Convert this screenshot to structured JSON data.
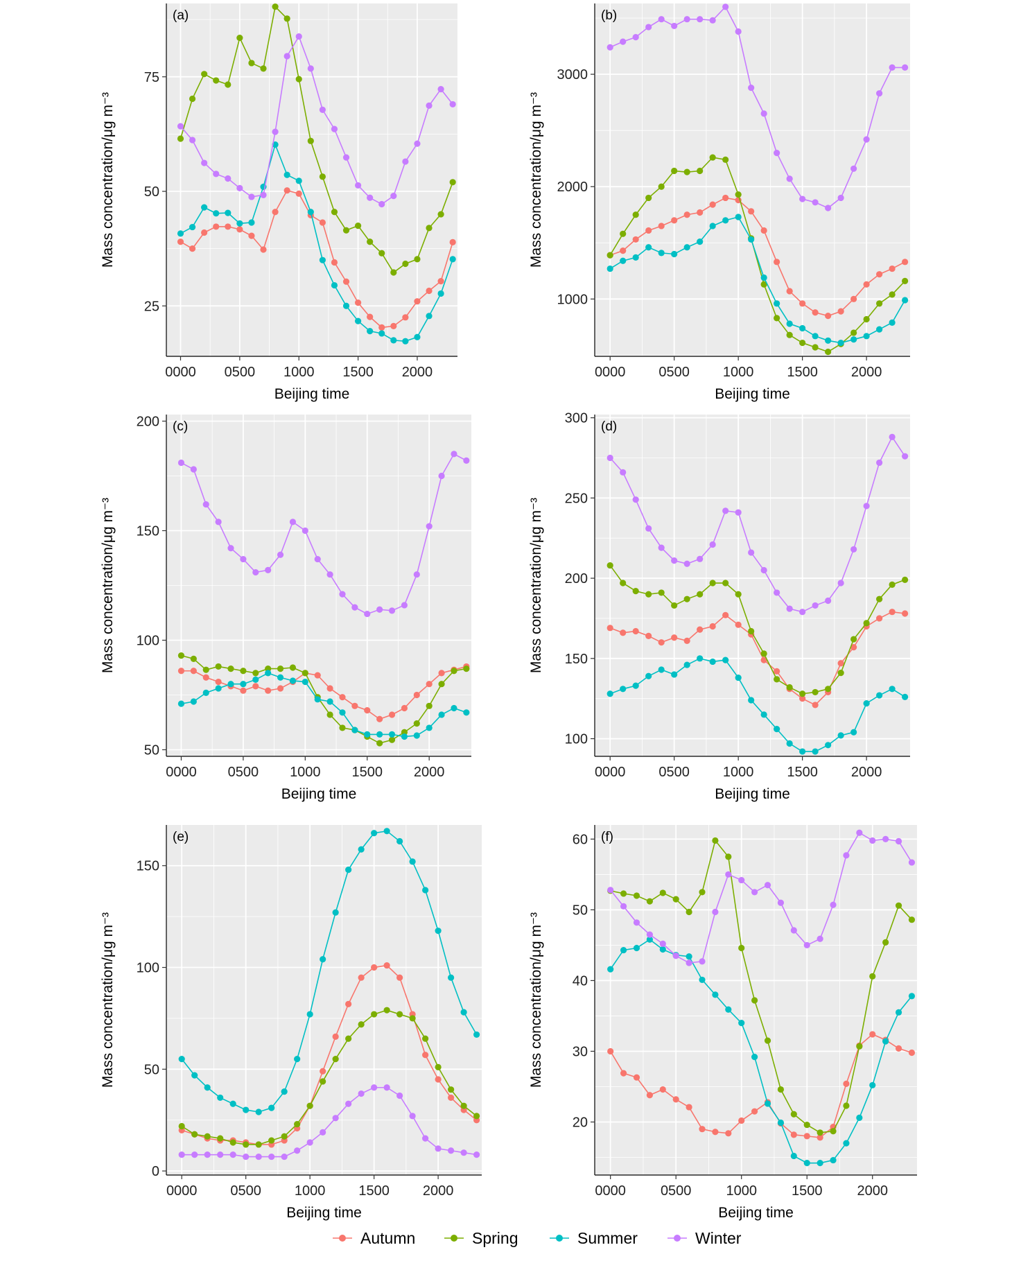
{
  "colors": {
    "Autumn": "#F8766D",
    "Spring": "#7CAE00",
    "Summer": "#00BFC4",
    "Winter": "#C77CFF",
    "panel_bg": "#EBEBEB",
    "grid": "#FFFFFF"
  },
  "legend": [
    "Autumn",
    "Spring",
    "Summer",
    "Winter"
  ],
  "chart_data": [
    {
      "panel": "(a)",
      "type": "line",
      "xlabel": "Beijing time",
      "ylabel": "Mass concentration/μg m⁻³",
      "xticks": [
        "0000",
        "0500",
        "1000",
        "1500",
        "2000"
      ],
      "xlim": [
        -120,
        2340
      ],
      "ylim": [
        14,
        91
      ],
      "yticks": [
        25,
        50,
        75
      ],
      "x": [
        0,
        100,
        200,
        300,
        400,
        500,
        600,
        700,
        800,
        900,
        1000,
        1100,
        1200,
        1300,
        1400,
        1500,
        1600,
        1700,
        1800,
        1900,
        2000,
        2100,
        2200,
        2300
      ],
      "series": [
        {
          "name": "Autumn",
          "values": [
            39,
            37.5,
            41,
            42.3,
            42.3,
            41.7,
            40.3,
            37.3,
            45.5,
            50.2,
            49.5,
            44.8,
            43.2,
            34.5,
            30.3,
            25.7,
            22.6,
            20.3,
            20.6,
            22.5,
            26,
            28.3,
            30.4,
            38.9
          ]
        },
        {
          "name": "Spring",
          "values": [
            61.5,
            70.2,
            75.6,
            74.2,
            73.3,
            83.5,
            78,
            76.8,
            90.3,
            87.7,
            74.5,
            61,
            53.2,
            45.5,
            41.5,
            42.5,
            39,
            36.5,
            32.3,
            34.2,
            35.2,
            42,
            45,
            52
          ]
        },
        {
          "name": "Summer",
          "values": [
            40.8,
            42.2,
            46.5,
            45.2,
            45.3,
            43,
            43.2,
            51,
            60.2,
            53.6,
            52.3,
            45.5,
            35,
            29.5,
            25,
            21.7,
            19.5,
            19,
            17.5,
            17.3,
            18.2,
            22.8,
            27.7,
            35.2
          ]
        },
        {
          "name": "Winter",
          "values": [
            64.2,
            61.2,
            56.2,
            53.8,
            52.8,
            50.7,
            48.8,
            49.2,
            63,
            79.5,
            83.8,
            76.8,
            67.8,
            63.6,
            57.4,
            51.3,
            48.6,
            47.2,
            49,
            56.5,
            60.4,
            68.7,
            72.3,
            69
          ]
        }
      ]
    },
    {
      "panel": "(b)",
      "type": "line",
      "xlabel": "Beijing time",
      "ylabel": "Mass concentration/μg m⁻³",
      "xticks": [
        "0000",
        "0500",
        "1000",
        "1500",
        "2000"
      ],
      "xlim": [
        -120,
        2340
      ],
      "ylim": [
        490,
        3630
      ],
      "yticks": [
        1000,
        2000,
        3000
      ],
      "x": [
        0,
        100,
        200,
        300,
        400,
        500,
        600,
        700,
        800,
        900,
        1000,
        1100,
        1200,
        1300,
        1400,
        1500,
        1600,
        1700,
        1800,
        1900,
        2000,
        2100,
        2200,
        2300
      ],
      "series": [
        {
          "name": "Autumn",
          "values": [
            1390,
            1430,
            1530,
            1610,
            1650,
            1700,
            1750,
            1770,
            1840,
            1900,
            1880,
            1780,
            1610,
            1330,
            1070,
            960,
            880,
            850,
            890,
            1000,
            1130,
            1220,
            1270,
            1330
          ]
        },
        {
          "name": "Spring",
          "values": [
            1390,
            1580,
            1750,
            1900,
            2000,
            2140,
            2130,
            2140,
            2260,
            2240,
            1930,
            1540,
            1130,
            830,
            680,
            610,
            570,
            530,
            600,
            700,
            820,
            960,
            1040,
            1160
          ]
        },
        {
          "name": "Summer",
          "values": [
            1270,
            1340,
            1370,
            1460,
            1410,
            1400,
            1460,
            1510,
            1650,
            1700,
            1730,
            1530,
            1190,
            960,
            780,
            740,
            670,
            630,
            610,
            640,
            670,
            730,
            790,
            990
          ]
        },
        {
          "name": "Winter",
          "values": [
            3240,
            3290,
            3330,
            3420,
            3490,
            3430,
            3490,
            3490,
            3480,
            3600,
            3380,
            2880,
            2650,
            2300,
            2070,
            1890,
            1860,
            1810,
            1900,
            2160,
            2420,
            2830,
            3060,
            3060
          ]
        }
      ]
    },
    {
      "panel": "(c)",
      "type": "line",
      "xlabel": "Beijing time",
      "ylabel": "Mass concentration/μg m⁻³",
      "xticks": [
        "0000",
        "0500",
        "1000",
        "1500",
        "2000"
      ],
      "xlim": [
        -120,
        2340
      ],
      "ylim": [
        47,
        203
      ],
      "yticks": [
        50,
        100,
        150,
        200
      ],
      "x": [
        0,
        100,
        200,
        300,
        400,
        500,
        600,
        700,
        800,
        900,
        1000,
        1100,
        1200,
        1300,
        1400,
        1500,
        1600,
        1700,
        1800,
        1900,
        2000,
        2100,
        2200,
        2300
      ],
      "series": [
        {
          "name": "Autumn",
          "values": [
            86,
            86,
            83,
            81,
            79,
            77,
            79,
            77,
            78,
            81,
            85,
            84,
            78,
            74,
            70,
            68,
            64,
            66,
            69,
            75,
            80,
            85,
            86.5,
            88
          ]
        },
        {
          "name": "Spring",
          "values": [
            93,
            91.5,
            86.5,
            88,
            87,
            86,
            85,
            87,
            87,
            87.5,
            85,
            74,
            66,
            60,
            59,
            56,
            53,
            54.5,
            58,
            62,
            70,
            80,
            86,
            87
          ]
        },
        {
          "name": "Summer",
          "values": [
            71,
            72,
            76,
            78,
            80,
            80,
            82,
            85,
            83,
            81.5,
            81,
            73,
            72,
            67,
            59,
            57,
            57,
            57,
            56,
            56.5,
            60,
            66,
            69,
            67
          ]
        },
        {
          "name": "Winter",
          "values": [
            181,
            178,
            162,
            154,
            142,
            137,
            131,
            132,
            139,
            154,
            150,
            137,
            130,
            121,
            115,
            112,
            114,
            113.5,
            116,
            130,
            152,
            175,
            185,
            182
          ]
        }
      ]
    },
    {
      "panel": "(d)",
      "type": "line",
      "xlabel": "Beijing time",
      "ylabel": "Mass concentration/μg m⁻³",
      "xticks": [
        "0000",
        "0500",
        "1000",
        "1500",
        "2000"
      ],
      "xlim": [
        -120,
        2340
      ],
      "ylim": [
        89,
        302
      ],
      "yticks": [
        100,
        150,
        200,
        250,
        300
      ],
      "x": [
        0,
        100,
        200,
        300,
        400,
        500,
        600,
        700,
        800,
        900,
        1000,
        1100,
        1200,
        1300,
        1400,
        1500,
        1600,
        1700,
        1800,
        1900,
        2000,
        2100,
        2200,
        2300
      ],
      "series": [
        {
          "name": "Autumn",
          "values": [
            169,
            166,
            167,
            164,
            160,
            163,
            161,
            168,
            170,
            177,
            171,
            165,
            149,
            142,
            131,
            125,
            121,
            129,
            147,
            157,
            170,
            175,
            179,
            178
          ]
        },
        {
          "name": "Spring",
          "values": [
            208,
            197,
            192,
            190,
            191,
            183,
            187,
            190,
            197,
            197,
            190,
            167,
            153,
            137,
            132,
            128,
            129,
            131,
            141,
            162,
            172,
            187,
            196,
            199
          ]
        },
        {
          "name": "Summer",
          "values": [
            128,
            131,
            133,
            139,
            143,
            140,
            146,
            150,
            148,
            149,
            138,
            124,
            115,
            106,
            97,
            92,
            92,
            96,
            102,
            104,
            122,
            127,
            131,
            126
          ]
        },
        {
          "name": "Winter",
          "values": [
            275,
            266,
            249,
            231,
            219,
            211,
            209,
            212,
            221,
            242,
            241,
            216,
            205,
            191,
            181,
            179,
            183,
            186,
            197,
            218,
            245,
            272,
            288,
            276
          ]
        }
      ]
    },
    {
      "panel": "(e)",
      "type": "line",
      "xlabel": "Beijing time",
      "ylabel": "Mass concentration/μg m⁻³",
      "xticks": [
        "0000",
        "0500",
        "1000",
        "1500",
        "2000"
      ],
      "xlim": [
        -120,
        2340
      ],
      "ylim": [
        -2,
        170
      ],
      "yticks": [
        0,
        50,
        100,
        150
      ],
      "x": [
        0,
        100,
        200,
        300,
        400,
        500,
        600,
        700,
        800,
        900,
        1000,
        1100,
        1200,
        1300,
        1400,
        1500,
        1600,
        1700,
        1800,
        1900,
        2000,
        2100,
        2200,
        2300
      ],
      "series": [
        {
          "name": "Autumn",
          "values": [
            20,
            18,
            16,
            15,
            15,
            14,
            13,
            13,
            15,
            21,
            32,
            49,
            66,
            82,
            95,
            100,
            101,
            95,
            77,
            57,
            45,
            36,
            30,
            25
          ]
        },
        {
          "name": "Spring",
          "values": [
            22,
            18,
            17,
            16,
            14,
            13,
            13,
            15,
            17,
            23,
            32,
            44,
            55,
            65,
            72,
            77,
            79,
            77,
            75,
            65,
            51,
            40,
            32,
            27
          ]
        },
        {
          "name": "Summer",
          "values": [
            55,
            47,
            41,
            36,
            33,
            30,
            29,
            31,
            39,
            55,
            77,
            104,
            127,
            148,
            158,
            166,
            167,
            162,
            152,
            138,
            118,
            95,
            78,
            67
          ]
        },
        {
          "name": "Winter",
          "values": [
            8,
            8,
            8,
            8,
            8,
            7,
            7,
            7,
            7,
            10,
            14,
            19,
            26,
            33,
            38,
            41,
            41,
            37,
            27,
            16,
            11,
            10,
            9,
            8
          ]
        }
      ]
    },
    {
      "panel": "(f)",
      "type": "line",
      "xlabel": "Beijing time",
      "ylabel": "Mass concentration/μg m⁻³",
      "xticks": [
        "0000",
        "0500",
        "1000",
        "1500",
        "2000"
      ],
      "xlim": [
        -120,
        2340
      ],
      "ylim": [
        12.5,
        62
      ],
      "yticks": [
        20,
        30,
        40,
        50,
        60
      ],
      "x": [
        0,
        100,
        200,
        300,
        400,
        500,
        600,
        700,
        800,
        900,
        1000,
        1100,
        1200,
        1300,
        1400,
        1500,
        1600,
        1700,
        1800,
        1900,
        2000,
        2100,
        2200,
        2300
      ],
      "series": [
        {
          "name": "Autumn",
          "values": [
            30,
            26.9,
            26.3,
            23.8,
            24.6,
            23.2,
            22.1,
            19,
            18.6,
            18.4,
            20.2,
            21.5,
            22.8,
            19.8,
            18.2,
            18,
            17.8,
            19.3,
            25.4,
            30.8,
            32.4,
            31.6,
            30.4,
            29.8
          ]
        },
        {
          "name": "Spring",
          "values": [
            52.7,
            52.3,
            52,
            51.2,
            52.4,
            51.5,
            49.7,
            52.5,
            59.8,
            57.5,
            44.6,
            37.2,
            31.5,
            24.6,
            21.1,
            19.6,
            18.5,
            18.7,
            22.3,
            30.7,
            40.6,
            45.4,
            50.6,
            48.6
          ]
        },
        {
          "name": "Summer",
          "values": [
            41.6,
            44.3,
            44.6,
            45.8,
            44.4,
            43.6,
            43.4,
            40.1,
            38,
            35.9,
            34,
            29.2,
            22.6,
            19.9,
            15.2,
            14.2,
            14.2,
            14.6,
            17,
            20.6,
            25.2,
            31.4,
            35.5,
            37.8
          ]
        },
        {
          "name": "Winter",
          "values": [
            52.8,
            50.5,
            48.2,
            46.5,
            45.2,
            43.5,
            42.5,
            42.7,
            49.7,
            55,
            54.2,
            52.5,
            53.5,
            51,
            47.1,
            45,
            45.9,
            50.7,
            57.7,
            60.9,
            59.8,
            60,
            59.7,
            56.7
          ]
        }
      ]
    }
  ]
}
